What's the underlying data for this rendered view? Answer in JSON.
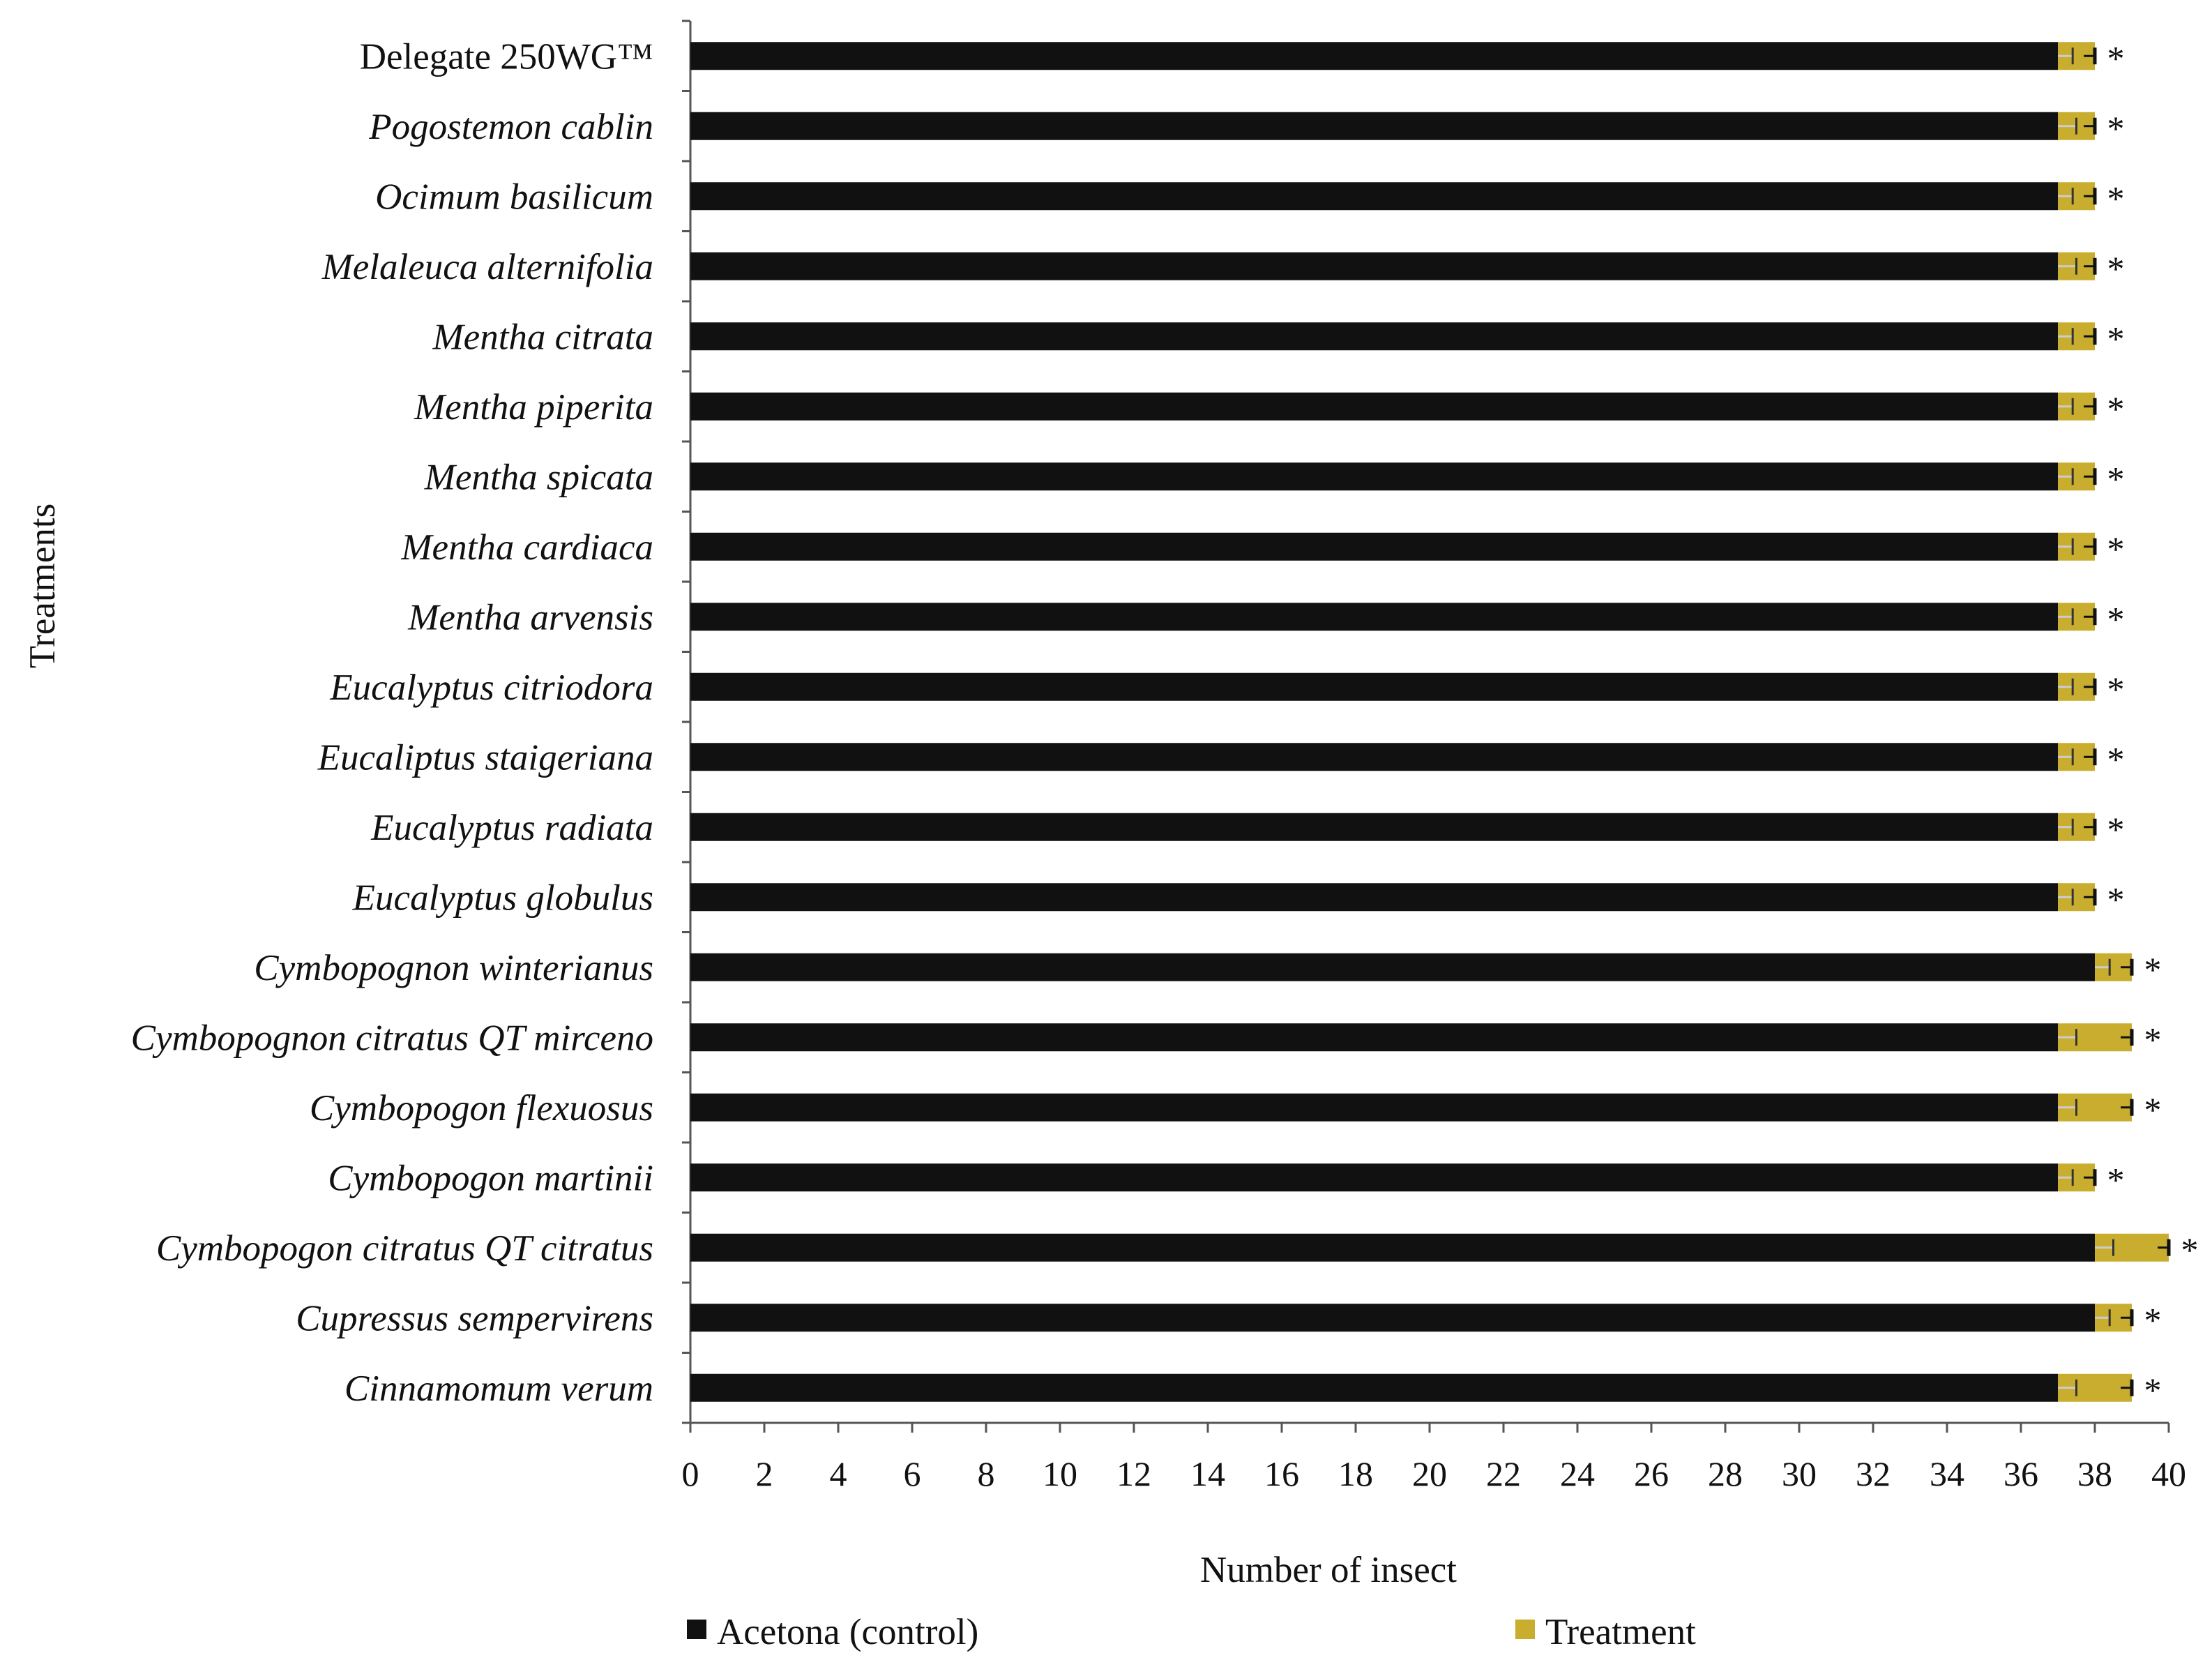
{
  "chart_data": {
    "type": "bar",
    "orientation": "horizontal",
    "stacked": true,
    "xlabel": "Number of insect",
    "ylabel": "Treatments",
    "xlim": [
      0,
      40
    ],
    "xticks": [
      0,
      2,
      4,
      6,
      8,
      10,
      12,
      14,
      16,
      18,
      20,
      22,
      24,
      26,
      28,
      30,
      32,
      34,
      36,
      38,
      40
    ],
    "grid": false,
    "legend_position": "bottom",
    "categories": [
      "Delegate 250WG™",
      "Pogostemon cablin",
      "Ocimum basilicum",
      "Melaleuca alternifolia",
      "Mentha citrata",
      "Mentha piperita",
      "Mentha spicata",
      "Mentha cardiaca",
      "Mentha arvensis",
      "Eucalyptus citriodora",
      "Eucaliptus staigeriana",
      "Eucalyptus radiata",
      "Eucalyptus globulus",
      "Cymbopognon winterianus",
      "Cymbopognon citratus QT mirceno",
      "Cymbopogon flexuosus",
      "Cymbopogon martinii",
      "Cymbopogon citratus QT citratus",
      "Cupressus sempervirens",
      "Cinnamomum verum"
    ],
    "italic_categories": [
      false,
      true,
      true,
      true,
      true,
      true,
      true,
      true,
      true,
      true,
      true,
      true,
      true,
      true,
      true,
      true,
      true,
      true,
      true,
      true
    ],
    "series": [
      {
        "name": "Acetona (control)",
        "color": "#111111",
        "values": [
          37,
          37,
          37,
          37,
          37,
          37,
          37,
          37,
          37,
          37,
          37,
          37,
          37,
          38,
          37,
          37,
          37,
          38,
          38,
          37
        ],
        "errors": [
          0.4,
          0.5,
          0.4,
          0.5,
          0.4,
          0.4,
          0.4,
          0.4,
          0.4,
          0.4,
          0.4,
          0.4,
          0.4,
          0.4,
          0.5,
          0.5,
          0.4,
          0.5,
          0.4,
          0.5
        ]
      },
      {
        "name": "Treatment",
        "color": "#c8ad2f",
        "values": [
          1,
          1,
          1,
          1,
          1,
          1,
          1,
          1,
          1,
          1,
          1,
          1,
          1,
          1,
          2,
          2,
          1,
          2,
          1,
          2
        ],
        "errors": [
          0.3,
          0.3,
          0.3,
          0.3,
          0.3,
          0.3,
          0.3,
          0.3,
          0.3,
          0.3,
          0.3,
          0.3,
          0.3,
          0.3,
          0.3,
          0.3,
          0.3,
          0.3,
          0.3,
          0.3
        ]
      }
    ],
    "significance_marker": "*",
    "significant": [
      true,
      true,
      true,
      true,
      true,
      true,
      true,
      true,
      true,
      true,
      true,
      true,
      true,
      true,
      true,
      true,
      true,
      true,
      true,
      true
    ]
  }
}
